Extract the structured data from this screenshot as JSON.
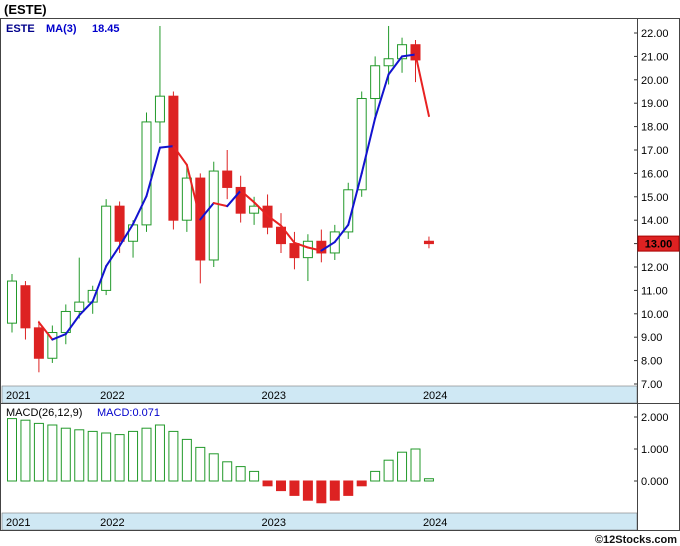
{
  "title": "(ESTE)",
  "footer": {
    "copyright": "©12Stocks.com"
  },
  "colors": {
    "up": "#22992a",
    "down": "#dd2222",
    "ma_up": "#1313cf",
    "ma_down": "#e82222",
    "band_bg": "#cfe8f4",
    "frame": "#444444",
    "price_tag_bg": "#dd2222",
    "price_tag_border": "#aa0000",
    "price_tag_text": "#ffffff",
    "legend_blue": "#0000cc",
    "symbol_blue": "#00008b"
  },
  "chart_data": [
    {
      "type": "candlestick",
      "name": "price-panel",
      "legend": {
        "symbol": "ESTE",
        "ma_label": "MA(3)",
        "ma_value": "18.45"
      },
      "y_ticks": [
        "22.00",
        "21.00",
        "20.00",
        "19.00",
        "18.00",
        "17.00",
        "16.00",
        "15.00",
        "14.00",
        "13.00",
        "12.00",
        "11.00",
        "10.00",
        "9.00",
        "8.00",
        "7.00"
      ],
      "y_range": [
        7,
        22
      ],
      "x_year_labels": [
        "2021",
        "2022",
        "2023",
        "2024"
      ],
      "last_price_label": "13.00",
      "last_price_value": 13.0,
      "months": [
        "2021-06",
        "2021-07",
        "2021-08",
        "2021-09",
        "2021-10",
        "2021-11",
        "2021-12",
        "2022-01",
        "2022-02",
        "2022-03",
        "2022-04",
        "2022-05",
        "2022-06",
        "2022-07",
        "2022-08",
        "2022-09",
        "2022-10",
        "2022-11",
        "2022-12",
        "2023-01",
        "2023-02",
        "2023-03",
        "2023-04",
        "2023-05",
        "2023-06",
        "2023-07",
        "2023-08",
        "2023-09",
        "2023-10",
        "2023-11",
        "2023-12",
        "2024-01"
      ],
      "candles_ohlc": [
        [
          9.6,
          11.7,
          9.2,
          11.4
        ],
        [
          11.2,
          11.4,
          8.9,
          9.4
        ],
        [
          9.4,
          9.7,
          7.5,
          8.1
        ],
        [
          8.1,
          9.5,
          7.9,
          9.2
        ],
        [
          9.2,
          10.4,
          8.7,
          10.1
        ],
        [
          10.1,
          12.4,
          9.8,
          10.5
        ],
        [
          10.5,
          11.2,
          10.0,
          11.0
        ],
        [
          11.0,
          14.9,
          10.8,
          14.6
        ],
        [
          14.6,
          14.8,
          12.6,
          13.1
        ],
        [
          13.1,
          14.0,
          12.4,
          13.8
        ],
        [
          13.8,
          18.6,
          13.5,
          18.2
        ],
        [
          18.2,
          22.3,
          17.3,
          19.3
        ],
        [
          19.3,
          19.5,
          13.6,
          14.0
        ],
        [
          14.0,
          16.3,
          13.5,
          15.8
        ],
        [
          15.8,
          16.0,
          11.3,
          12.3
        ],
        [
          12.3,
          16.5,
          12.0,
          16.1
        ],
        [
          16.1,
          17.0,
          14.9,
          15.4
        ],
        [
          15.4,
          15.9,
          13.9,
          14.3
        ],
        [
          14.3,
          15.0,
          13.8,
          14.6
        ],
        [
          14.6,
          15.1,
          13.4,
          13.7
        ],
        [
          13.7,
          14.3,
          12.6,
          13.0
        ],
        [
          13.0,
          13.5,
          11.9,
          12.4
        ],
        [
          12.4,
          13.4,
          11.4,
          13.1
        ],
        [
          13.1,
          13.6,
          12.2,
          12.6
        ],
        [
          12.6,
          13.8,
          12.3,
          13.5
        ],
        [
          13.5,
          15.6,
          13.2,
          15.3
        ],
        [
          15.3,
          19.5,
          15.0,
          19.2
        ],
        [
          19.2,
          21.0,
          18.4,
          20.6
        ],
        [
          20.6,
          22.3,
          19.8,
          20.9
        ],
        [
          20.9,
          21.8,
          20.3,
          21.5
        ],
        [
          21.5,
          21.7,
          19.9,
          20.85
        ],
        [
          13.1,
          13.3,
          12.8,
          13.0
        ]
      ]
    },
    {
      "type": "bar",
      "name": "macd-panel",
      "label": "MACD(26,12,9)",
      "value_label": "MACD:0.071",
      "y_ticks": [
        "2.000",
        "1.000",
        "0.000"
      ],
      "y_tick_values": [
        2,
        1,
        0
      ],
      "values": [
        1.95,
        1.9,
        1.8,
        1.75,
        1.65,
        1.6,
        1.55,
        1.5,
        1.45,
        1.55,
        1.65,
        1.75,
        1.55,
        1.3,
        1.05,
        0.85,
        0.6,
        0.45,
        0.3,
        -0.15,
        -0.3,
        -0.45,
        -0.6,
        -0.68,
        -0.6,
        -0.45,
        -0.15,
        0.3,
        0.65,
        0.9,
        1.0,
        0.071
      ]
    }
  ]
}
